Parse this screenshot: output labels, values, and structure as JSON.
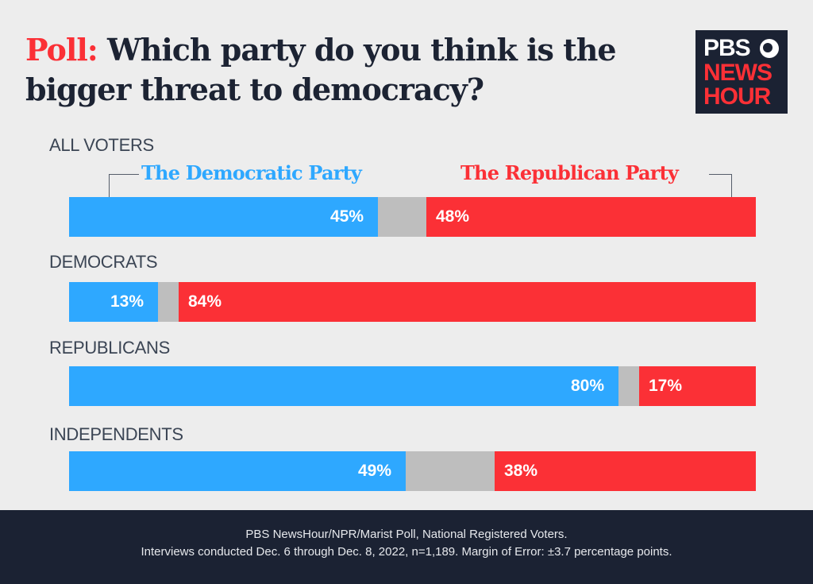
{
  "title": {
    "prefix": "Poll:",
    "text": "Which party do you think is the bigger threat to democracy?"
  },
  "logo": {
    "line1": "PBS",
    "line2": "NEWS",
    "line3": "HOUR"
  },
  "colors": {
    "democratic": "#2ea8ff",
    "other": "#bebebe",
    "republican": "#fb3036"
  },
  "chart_data": {
    "type": "bar",
    "orientation": "horizontal-stacked-100",
    "categories": [
      "ALL VOTERS",
      "DEMOCRATS",
      "REPUBLICANS",
      "INDEPENDENTS"
    ],
    "series": [
      {
        "name": "The Democratic Party",
        "values": [
          45,
          13,
          80,
          49
        ]
      },
      {
        "values": [
          7,
          3,
          3,
          13
        ]
      },
      {
        "name": "The Republican Party",
        "values": [
          48,
          84,
          17,
          38
        ]
      }
    ],
    "value_labels": {
      "dem": [
        "45%",
        "13%",
        "80%",
        "49%"
      ],
      "rep": [
        "48%",
        "84%",
        "17%",
        "38%"
      ]
    },
    "legend_position": "top"
  },
  "footer": {
    "line1": "PBS NewsHour/NPR/Marist Poll, National Registered Voters.",
    "line2": "Interviews conducted Dec. 6 through Dec. 8, 2022, n=1,189. Margin of Error: ±3.7 percentage points."
  }
}
